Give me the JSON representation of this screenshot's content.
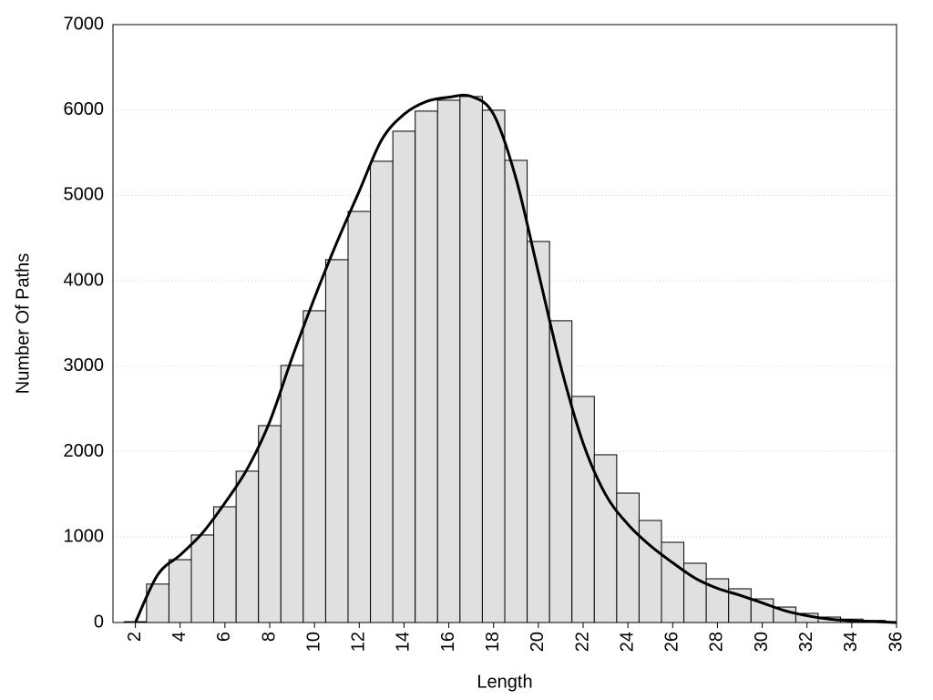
{
  "chart_data": {
    "type": "histogram",
    "x_label": "Length",
    "y_label": "Number Of Paths",
    "bins": [
      1.5,
      2.5,
      3.5,
      4.5,
      5.5,
      6.5,
      7.5,
      8.5,
      9.5,
      10.5,
      11.5,
      12.5,
      13.5,
      14.5,
      15.5,
      16.5,
      17.5,
      18.5,
      19.5,
      20.5,
      21.5,
      22.5,
      23.5,
      24.5,
      25.5,
      26.5,
      27.5,
      28.5,
      29.5,
      30.5,
      31.5,
      32.5,
      33.5,
      34.5,
      35.5
    ],
    "values": [
      10,
      450,
      736,
      1025,
      1355,
      1772,
      2305,
      3010,
      3650,
      4248,
      4813,
      5400,
      5752,
      5987,
      6115,
      6158,
      5998,
      5411,
      4461,
      3533,
      2647,
      1964,
      1515,
      1195,
      939,
      694,
      512,
      395,
      277,
      181,
      107,
      64,
      40,
      25
    ],
    "color": "#e0e0e0",
    "curve": {
      "color": "#000000",
      "x": [
        2,
        3,
        4,
        5,
        6,
        7,
        8,
        9,
        10,
        11,
        12,
        13,
        14,
        15,
        16,
        17,
        18,
        19,
        20,
        21,
        22,
        23,
        24,
        25,
        26,
        27,
        28,
        29,
        30,
        31,
        32,
        33,
        34,
        35,
        36
      ],
      "values": [
        0,
        560,
        790,
        1050,
        1400,
        1800,
        2350,
        3100,
        3800,
        4450,
        5050,
        5650,
        5950,
        6100,
        6150,
        6160,
        5950,
        5200,
        4100,
        3000,
        2100,
        1500,
        1150,
        900,
        700,
        520,
        400,
        320,
        230,
        140,
        80,
        40,
        20,
        10,
        0
      ]
    },
    "xlim": [
      1,
      36
    ],
    "xticks": [
      2,
      4,
      6,
      8,
      10,
      12,
      14,
      16,
      18,
      20,
      22,
      24,
      26,
      28,
      30,
      32,
      34,
      36
    ],
    "ylim": [
      0,
      7000
    ],
    "yticks": [
      0,
      1000,
      2000,
      3000,
      4000,
      5000,
      6000,
      7000
    ],
    "grid": true
  }
}
